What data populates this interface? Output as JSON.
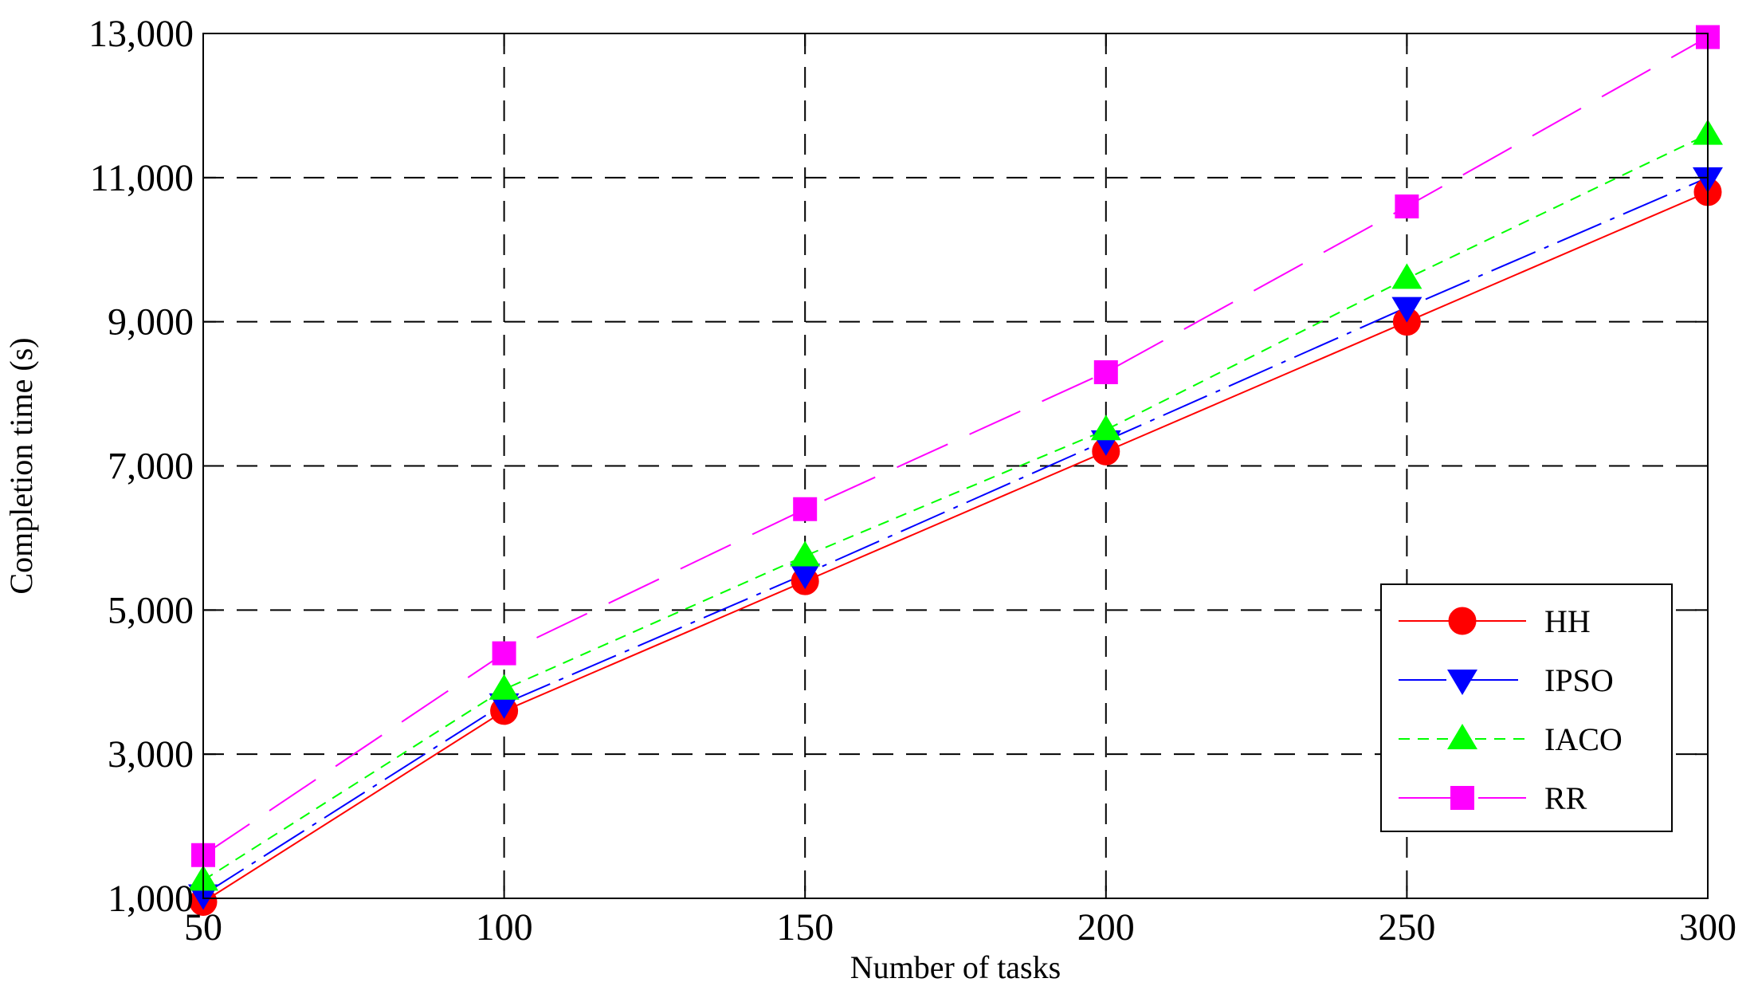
{
  "chart_data": {
    "type": "line",
    "xlabel": "Number of tasks",
    "ylabel": "Completion time (s)",
    "x": [
      50,
      100,
      150,
      200,
      250,
      300
    ],
    "xlim": [
      50,
      300
    ],
    "ylim": [
      1000,
      13000
    ],
    "x_ticks": [
      50,
      100,
      150,
      200,
      250,
      300
    ],
    "x_tick_labels": [
      "50",
      "100",
      "150",
      "200",
      "250",
      "300"
    ],
    "y_ticks": [
      1000,
      3000,
      5000,
      7000,
      9000,
      11000,
      13000
    ],
    "y_tick_labels": [
      "1,000",
      "3,000",
      "5,000",
      "7,000",
      "9,000",
      "11,000",
      "13,000"
    ],
    "grid": true,
    "legend_position": "bottom-right",
    "series": [
      {
        "name": "HH",
        "values": [
          950,
          3600,
          5400,
          7200,
          9000,
          10800
        ],
        "color": "#ff0000",
        "marker": "circle",
        "dash": "solid"
      },
      {
        "name": "IPSO",
        "values": [
          1050,
          3700,
          5500,
          7350,
          9200,
          11000
        ],
        "color": "#0000ff",
        "marker": "triangle-down",
        "dash": "dashdot"
      },
      {
        "name": "IACO",
        "values": [
          1250,
          3900,
          5750,
          7500,
          9600,
          11600
        ],
        "color": "#00ff00",
        "marker": "triangle-up",
        "dash": "dashed"
      },
      {
        "name": "RR",
        "values": [
          1600,
          4400,
          6400,
          8300,
          10600,
          12950
        ],
        "color": "#ff00ff",
        "marker": "square",
        "dash": "longdash"
      }
    ]
  }
}
